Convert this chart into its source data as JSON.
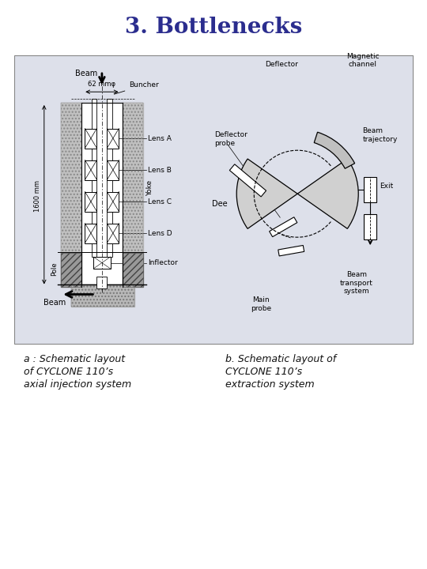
{
  "title": "3. Bottlenecks",
  "title_color": "#2b2d8e",
  "title_fontsize": 20,
  "bg_color": "#ffffff",
  "panel_bg": "#dde0ea",
  "caption_left_lines": [
    "a : Schematic layout",
    "of CYCLONE 110’s",
    "axial injection system"
  ],
  "caption_right_lines": [
    "b. Schematic layout of",
    "CYCLONE 110’s",
    "extraction system"
  ],
  "caption_fontsize": 9,
  "caption_color": "#111111",
  "fig_width": 5.4,
  "fig_height": 7.2,
  "dpi": 100
}
